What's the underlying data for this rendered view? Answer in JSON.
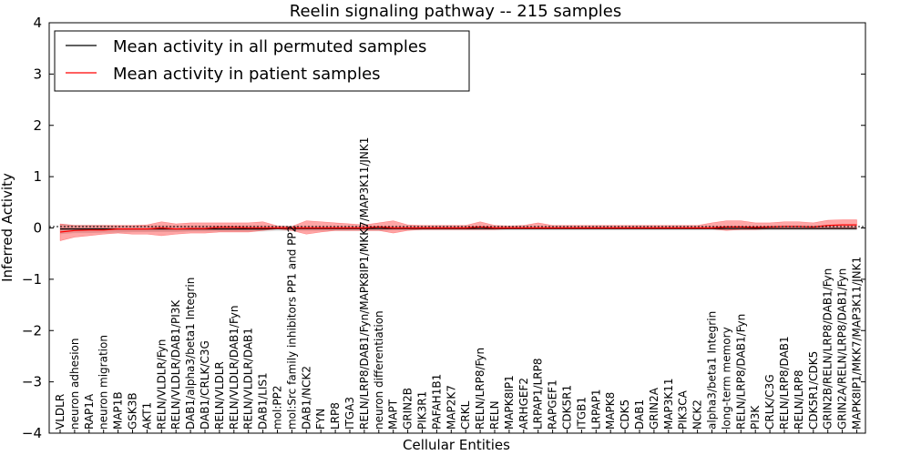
{
  "chart_data": {
    "type": "line",
    "title": "Reelin signaling pathway -- 215 samples",
    "xlabel": "Cellular Entities",
    "ylabel": "Inferred Activity",
    "ylim": [
      -4,
      4
    ],
    "yticks": [
      -4,
      -3,
      -2,
      -1,
      0,
      1,
      2,
      3,
      4
    ],
    "ytick_labels": [
      "−4",
      "−3",
      "−2",
      "−1",
      "0",
      "1",
      "2",
      "3",
      "4"
    ],
    "legend_position": "top-left",
    "categories": [
      "VLDLR",
      "neuron adhesion",
      "RAP1A",
      "neuron migration",
      "MAP1B",
      "GSK3B",
      "AKT1",
      "RELN/VLDLR/Fyn",
      "RELN/VLDLR/DAB1/PI3K",
      "DAB1/alpha3/beta1 Integrin",
      "DAB1/CRLK/C3G",
      "RELN/VLDLR",
      "RELN/VLDLR/DAB1/Fyn",
      "RELN/VLDLR/DAB1",
      "DAB1/LIS1",
      "mol:PP2",
      "mol:Src family inhibitors PP1 and PP2",
      "DAB1/NCK2",
      "FYN",
      "LRP8",
      "ITGA3",
      "RELN/LRP8/DAB1/Fyn/MAPK8IP1/MKK7/MAP3K11/JNK1",
      "neuron differentiation",
      "MAPT",
      "GRIN2B",
      "PIK3R1",
      "PAFAH1B1",
      "MAP2K7",
      "CRKL",
      "RELN/LRP8/Fyn",
      "RELN",
      "MAPK8IP1",
      "ARHGEF2",
      "LRPAP1/LRP8",
      "RAPGEF1",
      "CDK5R1",
      "ITGB1",
      "LRPAP1",
      "MAPK8",
      "CDK5",
      "DAB1",
      "GRIN2A",
      "MAP3K11",
      "PIK3CA",
      "NCK2",
      "alpha3/beta1 Integrin",
      "long-term memory",
      "RELN/LRP8/DAB1/Fyn",
      "PI3K",
      "CRLK/C3G",
      "RELN/LRP8/DAB1",
      "RELN/LRP8",
      "CDK5R1/CDK5",
      "GRIN2B/RELN/LRP8/DAB1/Fyn",
      "GRIN2A/RELN/LRP8/DAB1/Fyn",
      "MAPK8IP1/MKK7/MAP3K11/JNK1"
    ],
    "series": [
      {
        "name": "Mean activity in all permuted samples",
        "color": "#000000",
        "values": [
          -0.02,
          -0.02,
          -0.02,
          -0.02,
          -0.02,
          -0.02,
          -0.02,
          -0.02,
          -0.02,
          -0.02,
          -0.02,
          -0.02,
          -0.02,
          -0.02,
          -0.02,
          -0.01,
          -0.01,
          -0.01,
          -0.01,
          -0.01,
          -0.01,
          -0.01,
          -0.01,
          -0.01,
          -0.01,
          -0.01,
          -0.01,
          -0.01,
          -0.01,
          -0.01,
          -0.01,
          -0.01,
          -0.01,
          -0.01,
          -0.01,
          -0.01,
          -0.01,
          -0.01,
          -0.01,
          -0.01,
          -0.01,
          -0.01,
          -0.01,
          -0.01,
          -0.01,
          -0.01,
          -0.01,
          -0.01,
          -0.01,
          -0.01,
          -0.01,
          -0.01,
          -0.01,
          -0.01,
          -0.01,
          -0.01
        ],
        "band_low": [
          -0.12,
          -0.1,
          -0.1,
          -0.09,
          -0.09,
          -0.08,
          -0.08,
          -0.08,
          -0.08,
          -0.07,
          -0.07,
          -0.07,
          -0.07,
          -0.07,
          -0.07,
          -0.06,
          -0.06,
          -0.06,
          -0.06,
          -0.06,
          -0.06,
          -0.06,
          -0.06,
          -0.05,
          -0.05,
          -0.05,
          -0.05,
          -0.05,
          -0.05,
          -0.05,
          -0.05,
          -0.05,
          -0.05,
          -0.05,
          -0.05,
          -0.05,
          -0.05,
          -0.05,
          -0.05,
          -0.05,
          -0.05,
          -0.05,
          -0.05,
          -0.05,
          -0.05,
          -0.05,
          -0.05,
          -0.05,
          -0.05,
          -0.05,
          -0.05,
          -0.05,
          -0.05,
          -0.05,
          -0.05,
          -0.05
        ],
        "band_high": [
          0.08,
          0.06,
          0.06,
          0.06,
          0.05,
          0.05,
          0.05,
          0.05,
          0.05,
          0.05,
          0.05,
          0.05,
          0.05,
          0.05,
          0.05,
          0.04,
          0.04,
          0.04,
          0.04,
          0.04,
          0.04,
          0.04,
          0.04,
          0.04,
          0.04,
          0.04,
          0.04,
          0.04,
          0.04,
          0.04,
          0.04,
          0.04,
          0.04,
          0.04,
          0.04,
          0.04,
          0.04,
          0.04,
          0.04,
          0.04,
          0.04,
          0.04,
          0.04,
          0.04,
          0.04,
          0.04,
          0.04,
          0.04,
          0.04,
          0.04,
          0.04,
          0.04,
          0.04,
          0.04,
          0.04,
          0.04
        ]
      },
      {
        "name": "Mean activity in patient samples",
        "color": "#ff0000",
        "values": [
          -0.08,
          -0.05,
          -0.04,
          -0.04,
          -0.02,
          -0.02,
          -0.02,
          0.0,
          -0.02,
          -0.01,
          -0.01,
          0.01,
          0.01,
          0.0,
          0.0,
          0.0,
          0.0,
          0.0,
          0.0,
          0.0,
          0.0,
          0.0,
          0.02,
          0.0,
          0.0,
          0.0,
          0.0,
          0.0,
          0.0,
          0.02,
          0.0,
          0.0,
          0.0,
          0.0,
          0.0,
          0.0,
          0.0,
          0.0,
          0.0,
          0.0,
          0.0,
          0.0,
          0.0,
          0.0,
          0.0,
          0.0,
          0.02,
          0.02,
          0.01,
          0.02,
          0.03,
          0.03,
          0.02,
          0.05,
          0.06,
          0.06
        ],
        "band_low": [
          -0.25,
          -0.18,
          -0.15,
          -0.12,
          -0.1,
          -0.12,
          -0.12,
          -0.15,
          -0.12,
          -0.1,
          -0.1,
          -0.08,
          -0.08,
          -0.08,
          -0.05,
          -0.02,
          -0.05,
          -0.12,
          -0.08,
          -0.05,
          -0.05,
          -0.05,
          -0.05,
          -0.1,
          -0.05,
          -0.03,
          -0.03,
          -0.03,
          -0.03,
          -0.03,
          -0.03,
          -0.02,
          -0.02,
          -0.02,
          -0.02,
          -0.02,
          -0.02,
          -0.02,
          -0.02,
          -0.02,
          -0.02,
          -0.02,
          -0.02,
          -0.02,
          -0.02,
          -0.02,
          -0.05,
          -0.03,
          -0.03,
          -0.02,
          -0.02,
          -0.02,
          -0.02,
          -0.02,
          -0.02,
          -0.02
        ],
        "band_high": [
          0.08,
          0.05,
          0.05,
          0.05,
          0.05,
          0.05,
          0.06,
          0.12,
          0.08,
          0.1,
          0.1,
          0.1,
          0.1,
          0.1,
          0.12,
          0.04,
          0.03,
          0.14,
          0.12,
          0.1,
          0.08,
          0.06,
          0.1,
          0.14,
          0.06,
          0.05,
          0.05,
          0.05,
          0.05,
          0.12,
          0.05,
          0.04,
          0.05,
          0.1,
          0.05,
          0.05,
          0.05,
          0.05,
          0.05,
          0.05,
          0.05,
          0.05,
          0.05,
          0.05,
          0.05,
          0.1,
          0.14,
          0.14,
          0.1,
          0.1,
          0.12,
          0.12,
          0.1,
          0.15,
          0.16,
          0.16
        ]
      }
    ]
  }
}
